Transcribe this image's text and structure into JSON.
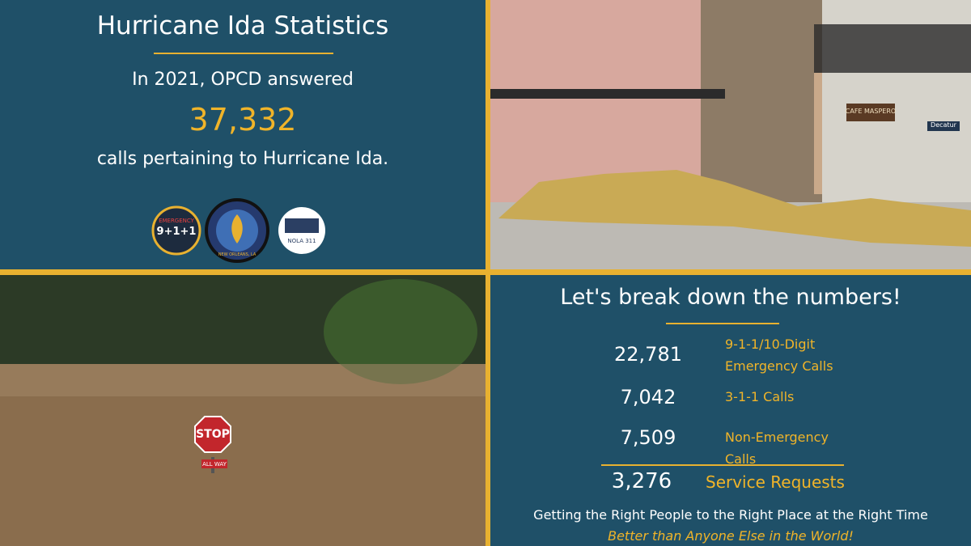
{
  "header": {
    "title": "Hurricane Ida Statistics",
    "intro": "In 2021, OPCD answered",
    "total": "37,332",
    "outro": "calls pertaining to Hurricane Ida."
  },
  "logos": [
    {
      "top": "EMERGENCY",
      "main": "9+1+1"
    },
    {
      "main": "NEW ORLEANS, LA"
    },
    {
      "main": "NOLA 311"
    }
  ],
  "breakdown": {
    "title": "Let's break down the numbers!",
    "rows": [
      {
        "value": "22,781",
        "label": "9-1-1/10-Digit Emergency Calls"
      },
      {
        "value": "7,042",
        "label": "3-1-1 Calls"
      },
      {
        "value": "7,509",
        "label": "Non-Emergency Calls"
      }
    ],
    "service": {
      "value": "3,276",
      "label": "Service Requests"
    }
  },
  "footer": {
    "tagline": "Getting the Right People to the Right Place at the Right Time",
    "slogan": "Better than Anyone Else in the World!"
  },
  "photos": {
    "street_sign": "Decatur",
    "cafe_sign": "CAFE MASPERO",
    "stop_sign": "STOP",
    "stop_plate": "ALL WAY"
  }
}
